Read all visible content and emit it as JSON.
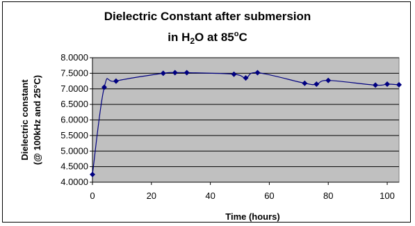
{
  "chart_data": {
    "type": "line",
    "title_parts": {
      "line1": "Dielectric Constant after submersion",
      "line2_prefix": "in H",
      "line2_sub": "2",
      "line2_mid": "O at 85",
      "line2_sup": "o",
      "line2_suffix": "C"
    },
    "xlabel": "Time (hours)",
    "ylabel_line1": "Dielectric constant",
    "ylabel_line2": "(@ 100kHz and 25°C)",
    "xlim": [
      0,
      104
    ],
    "ylim": [
      4.0,
      8.0
    ],
    "x_ticks": [
      "0",
      "20",
      "40",
      "60",
      "80",
      "100"
    ],
    "x_tick_values": [
      0,
      20,
      40,
      60,
      80,
      100
    ],
    "y_ticks": [
      "4.0000",
      "4.5000",
      "5.0000",
      "5.5000",
      "6.0000",
      "6.5000",
      "7.0000",
      "7.5000",
      "8.0000"
    ],
    "y_tick_values": [
      4.0,
      4.5,
      5.0,
      5.5,
      6.0,
      6.5,
      7.0,
      7.5,
      8.0
    ],
    "grid": "horizontal",
    "legend": "none",
    "series": [
      {
        "x": [
          0,
          4,
          8,
          24,
          28,
          32,
          48,
          52,
          56,
          72,
          76,
          80,
          96,
          100,
          104
        ],
        "y": [
          4.25,
          7.05,
          7.25,
          7.5,
          7.52,
          7.52,
          7.47,
          7.35,
          7.52,
          7.18,
          7.15,
          7.27,
          7.12,
          7.15,
          7.13
        ]
      }
    ],
    "colors": {
      "plot_bg": "#c0c0c0",
      "line": "#000080",
      "marker": "#000080",
      "grid": "#000000"
    }
  }
}
